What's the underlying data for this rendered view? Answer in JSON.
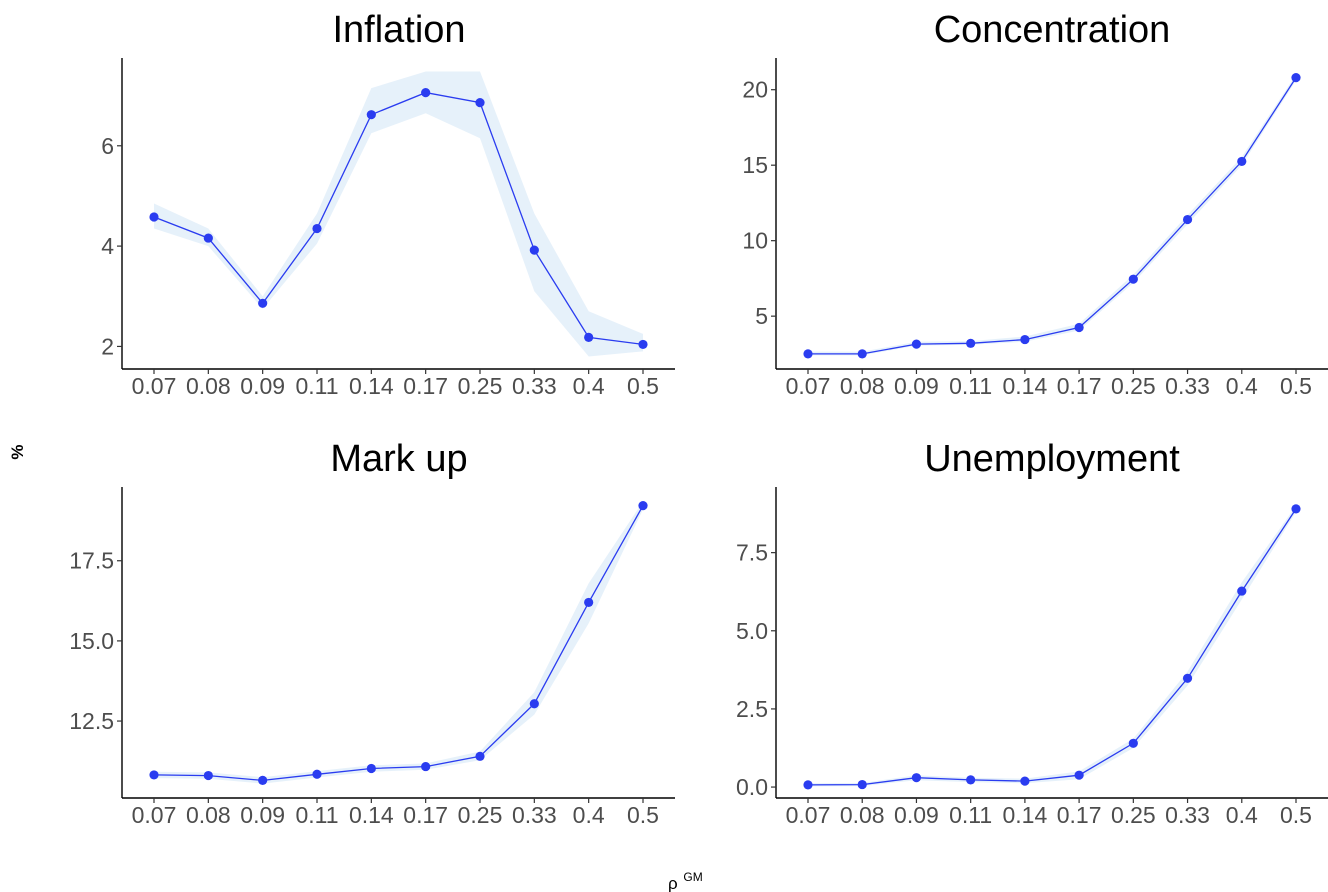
{
  "figure": {
    "ylabel": "%",
    "xlabel_symbol": "ρ",
    "xlabel_superscript": "GM"
  },
  "chart_data": [
    {
      "type": "line",
      "title": "Inflation",
      "categories": [
        "0.07",
        "0.08",
        "0.09",
        "0.11",
        "0.14",
        "0.17",
        "0.25",
        "0.33",
        "0.4",
        "0.5"
      ],
      "values": [
        4.58,
        4.16,
        2.86,
        4.35,
        6.62,
        7.06,
        6.86,
        3.92,
        2.18,
        2.04
      ],
      "lower": [
        4.35,
        4.0,
        2.75,
        4.05,
        6.25,
        6.65,
        6.15,
        3.1,
        1.8,
        1.9
      ],
      "upper": [
        4.85,
        4.35,
        3.0,
        4.65,
        7.15,
        7.48,
        7.48,
        4.65,
        2.7,
        2.25
      ],
      "ylim": [
        1.55,
        7.75
      ],
      "yticks": [
        2,
        4,
        6
      ],
      "ytick_labels": [
        "2",
        "4",
        "6"
      ]
    },
    {
      "type": "line",
      "title": "Concentration",
      "categories": [
        "0.07",
        "0.08",
        "0.09",
        "0.11",
        "0.14",
        "0.17",
        "0.25",
        "0.33",
        "0.4",
        "0.5"
      ],
      "values": [
        2.5,
        2.5,
        3.15,
        3.2,
        3.45,
        4.25,
        7.45,
        11.4,
        15.25,
        20.8
      ],
      "lower": [
        2.4,
        2.4,
        3.05,
        3.1,
        3.3,
        4.05,
        7.2,
        11.1,
        15.0,
        20.6
      ],
      "upper": [
        2.65,
        2.65,
        3.3,
        3.35,
        3.65,
        4.5,
        7.75,
        11.7,
        15.55,
        21.0
      ],
      "ylim": [
        1.5,
        22.1
      ],
      "yticks": [
        5,
        10,
        15,
        20
      ],
      "ytick_labels": [
        "5",
        "10",
        "15",
        "20"
      ]
    },
    {
      "type": "line",
      "title": "Mark up",
      "categories": [
        "0.07",
        "0.08",
        "0.09",
        "0.11",
        "0.14",
        "0.17",
        "0.25",
        "0.33",
        "0.4",
        "0.5"
      ],
      "values": [
        10.82,
        10.8,
        10.65,
        10.84,
        11.02,
        11.08,
        11.4,
        13.04,
        16.2,
        19.22
      ],
      "lower": [
        10.72,
        10.7,
        10.55,
        10.74,
        10.92,
        10.98,
        11.28,
        12.7,
        15.55,
        19.1
      ],
      "upper": [
        10.92,
        10.9,
        10.75,
        10.94,
        11.12,
        11.18,
        11.55,
        13.4,
        16.8,
        19.35
      ],
      "ylim": [
        10.1,
        19.8
      ],
      "yticks": [
        12.5,
        15.0,
        17.5
      ],
      "ytick_labels": [
        "12.5",
        "15.0",
        "17.5"
      ]
    },
    {
      "type": "line",
      "title": "Unemployment",
      "categories": [
        "0.07",
        "0.08",
        "0.09",
        "0.11",
        "0.14",
        "0.17",
        "0.25",
        "0.33",
        "0.4",
        "0.5"
      ],
      "values": [
        0.07,
        0.08,
        0.3,
        0.23,
        0.19,
        0.38,
        1.4,
        3.48,
        6.27,
        8.9
      ],
      "lower": [
        0.02,
        0.03,
        0.22,
        0.16,
        0.12,
        0.25,
        1.25,
        3.25,
        6.0,
        8.8
      ],
      "upper": [
        0.12,
        0.13,
        0.38,
        0.3,
        0.27,
        0.5,
        1.55,
        3.7,
        6.55,
        9.0
      ],
      "ylim": [
        -0.35,
        9.6
      ],
      "yticks": [
        0.0,
        2.5,
        5.0,
        7.5
      ],
      "ytick_labels": [
        "0.0",
        "2.5",
        "5.0",
        "7.5"
      ]
    }
  ]
}
